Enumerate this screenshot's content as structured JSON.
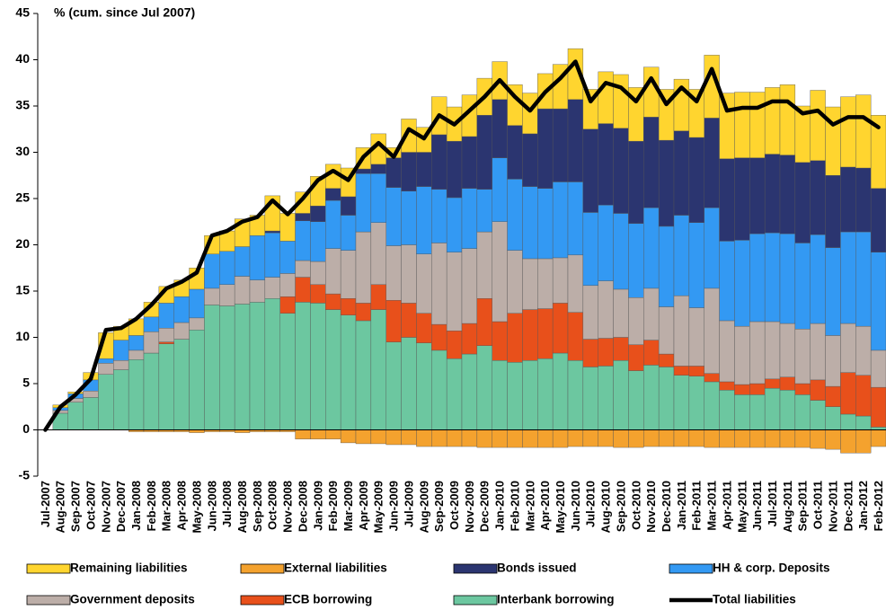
{
  "chart_data": {
    "type": "stacked-bar-line",
    "y_label": "% (cum. since Jul 2007)",
    "categories": [
      "Jul-2007",
      "Aug-2007",
      "Sep-2007",
      "Oct-2007",
      "Nov-2007",
      "Dec-2007",
      "Jan-2008",
      "Feb-2008",
      "Mar-2008",
      "Apr-2008",
      "May-2008",
      "Jun-2008",
      "Jul-2008",
      "Aug-2008",
      "Sep-2008",
      "Oct-2008",
      "Nov-2008",
      "Dec-2008",
      "Jan-2009",
      "Feb-2009",
      "Mar-2009",
      "Apr-2009",
      "May-2009",
      "Jun-2009",
      "Jul-2009",
      "Aug-2009",
      "Sep-2009",
      "Oct-2009",
      "Nov-2009",
      "Dec-2009",
      "Jan-2010",
      "Feb-2010",
      "Mar-2010",
      "Apr-2010",
      "May-2010",
      "Jun-2010",
      "Jul-2010",
      "Aug-2010",
      "Sep-2010",
      "Oct-2010",
      "Nov-2010",
      "Dec-2010",
      "Jan-2011",
      "Feb-2011",
      "Mar-2011",
      "Apr-2011",
      "May-2011",
      "Jun-2011",
      "Jul-2011",
      "Aug-2011",
      "Sep-2011",
      "Oct-2011",
      "Nov-2011",
      "Dec-2011",
      "Jan-2012",
      "Feb-2012"
    ],
    "ylim": [
      -5,
      45
    ],
    "yticks": [
      -5,
      0,
      5,
      10,
      15,
      20,
      25,
      30,
      35,
      40,
      45
    ],
    "series": [
      {
        "name": "Remaining liabilities",
        "kind": "bar",
        "color": "#ffd52f",
        "values": [
          0,
          0.3,
          0.2,
          0.8,
          2.8,
          1.5,
          1.8,
          1.6,
          1.8,
          1.8,
          2.3,
          2,
          2.2,
          3,
          2.2,
          3.8,
          3,
          2.3,
          3.2,
          2.6,
          3.1,
          2.3,
          3.3,
          1.1,
          3.6,
          2.7,
          4.1,
          3.7,
          4.5,
          4,
          4.1,
          4.4,
          4.4,
          3.8,
          4.8,
          5.5,
          4.3,
          5.6,
          5.8,
          5.8,
          5.4,
          5.5,
          5.6,
          5.2,
          6.8,
          7.1,
          7.1,
          7.1,
          7.2,
          7.6,
          6.1,
          7.6,
          7.4,
          7.6,
          7.9,
          7.9
        ]
      },
      {
        "name": "External liabilities",
        "kind": "bar",
        "color": "#f4a22e",
        "values": [
          0,
          0,
          0,
          0,
          0,
          0,
          -0.2,
          -0.2,
          -0.2,
          -0.2,
          -0.3,
          -0.2,
          -0.2,
          -0.3,
          -0.2,
          -0.2,
          -0.2,
          -1,
          -1,
          -1,
          -1.4,
          -1.5,
          -1.5,
          -1.6,
          -1.6,
          -1.8,
          -1.8,
          -1.8,
          -1.8,
          -1.9,
          -1.9,
          -1.9,
          -1.9,
          -1.9,
          -1.9,
          -1.8,
          -1.8,
          -1.8,
          -1.9,
          -1.9,
          -1.8,
          -1.8,
          -1.8,
          -1.8,
          -1.9,
          -1.9,
          -1.9,
          -1.9,
          -1.9,
          -1.9,
          -1.9,
          -2,
          -2.1,
          -2.5,
          -2.5,
          -1.8
        ]
      },
      {
        "name": "Bonds issued",
        "kind": "bar",
        "color": "#2b3570",
        "values": [
          0,
          0,
          0,
          0,
          0,
          0,
          0,
          0,
          0,
          0,
          0,
          0,
          0,
          0,
          0,
          0.2,
          0,
          0.8,
          1.7,
          1.3,
          2,
          0.5,
          1,
          3.2,
          4.2,
          3.7,
          5.9,
          6.1,
          5.6,
          8,
          6.3,
          5.8,
          5.7,
          8.6,
          7.9,
          8.9,
          9,
          8.8,
          9.2,
          8.9,
          9.8,
          9.3,
          9.1,
          9.2,
          9.7,
          8.9,
          8.9,
          8.2,
          8.5,
          8.5,
          8.7,
          8,
          7.8,
          7,
          6.9,
          6.9
        ]
      },
      {
        "name": "HH & corp. Deposits",
        "kind": "bar",
        "color": "#3399f3",
        "values": [
          0,
          0.3,
          0.5,
          1.2,
          0.5,
          2.2,
          1.6,
          1.6,
          2.7,
          2.8,
          3.1,
          3.7,
          3.6,
          3.2,
          4.8,
          4.8,
          3.5,
          4.3,
          4.3,
          5.2,
          3.8,
          6.3,
          5.3,
          6.3,
          5.8,
          7.3,
          5.8,
          5.9,
          6.5,
          4.6,
          6.9,
          7.7,
          7.8,
          7.6,
          8.2,
          7.9,
          7.9,
          8.2,
          8.2,
          8,
          8.7,
          8.7,
          8.7,
          9.2,
          8.7,
          8.6,
          9.3,
          9.5,
          9.6,
          9.7,
          9.3,
          9.6,
          9.5,
          9.9,
          10.2,
          10.6
        ]
      },
      {
        "name": "Government deposits",
        "kind": "bar",
        "color": "#bcaea8",
        "values": [
          0,
          0.3,
          0.4,
          0.7,
          1.2,
          1,
          1,
          2.3,
          1.5,
          1.8,
          1.3,
          1.8,
          2.3,
          3,
          2.4,
          2.3,
          2.5,
          1.8,
          2.5,
          4.9,
          5.2,
          7.7,
          6.7,
          5.9,
          6.3,
          6.4,
          8.8,
          8.5,
          8.1,
          7.2,
          10.8,
          6.8,
          5.5,
          5.4,
          4.9,
          6.2,
          5.8,
          6.2,
          5.2,
          5.1,
          5.6,
          5.1,
          7.6,
          6.3,
          9.2,
          6.6,
          6.3,
          6.7,
          6.2,
          5.8,
          5.9,
          6.1,
          5.5,
          5.3,
          5.3,
          4
        ]
      },
      {
        "name": "ECB borrowing",
        "kind": "bar",
        "color": "#e8501b",
        "values": [
          0,
          0,
          0,
          0,
          0,
          0,
          0,
          0,
          0.2,
          0,
          0,
          0,
          0,
          0,
          0,
          0,
          1.8,
          2.7,
          2,
          1.7,
          1.8,
          1.9,
          2.7,
          4.5,
          3.7,
          3.2,
          2.8,
          3,
          3.3,
          5.1,
          4.2,
          5.3,
          5.5,
          5.4,
          5.4,
          5.2,
          3,
          3,
          2.5,
          2.8,
          2.7,
          1.4,
          1,
          1.1,
          0.9,
          0.9,
          1.1,
          1.2,
          1,
          1.4,
          1.2,
          2.2,
          2.2,
          4.5,
          4.4,
          4.3
        ]
      },
      {
        "name": "Interbank borrowing",
        "kind": "bar",
        "color": "#6cc7a0",
        "values": [
          0,
          1.8,
          3,
          3.5,
          6,
          6.5,
          7.6,
          8.3,
          9.3,
          9.8,
          10.8,
          13.5,
          13.4,
          13.6,
          13.8,
          14.2,
          12.6,
          13.8,
          13.7,
          13,
          12.4,
          11.8,
          13,
          9.5,
          10,
          9.4,
          8.6,
          7.7,
          8.2,
          9.1,
          7.5,
          7.3,
          7.5,
          7.7,
          8.3,
          7.5,
          6.8,
          6.9,
          7.5,
          6.4,
          7,
          6.8,
          5.9,
          5.8,
          5.2,
          4.3,
          3.8,
          3.8,
          4.5,
          4.3,
          3.8,
          3.2,
          2.5,
          1.7,
          1.5,
          0.3
        ]
      },
      {
        "name": "Total liabilities",
        "kind": "line",
        "color": "#000000",
        "values": [
          0,
          2.5,
          3.8,
          5.5,
          10.8,
          11,
          12,
          13.5,
          15.3,
          16,
          17,
          21,
          21.5,
          22.5,
          23,
          24.8,
          23.3,
          25,
          27,
          28,
          27,
          29.5,
          31,
          29.5,
          32.5,
          31.5,
          34,
          33,
          34.5,
          36,
          37.8,
          36,
          34.5,
          36.5,
          38,
          39.8,
          35.5,
          37.5,
          37,
          35.5,
          38,
          35.2,
          37,
          35.5,
          39,
          34.5,
          34.8,
          34.8,
          35.5,
          35.5,
          34.2,
          34.5,
          33,
          33.8,
          33.8,
          32.7
        ]
      }
    ]
  }
}
